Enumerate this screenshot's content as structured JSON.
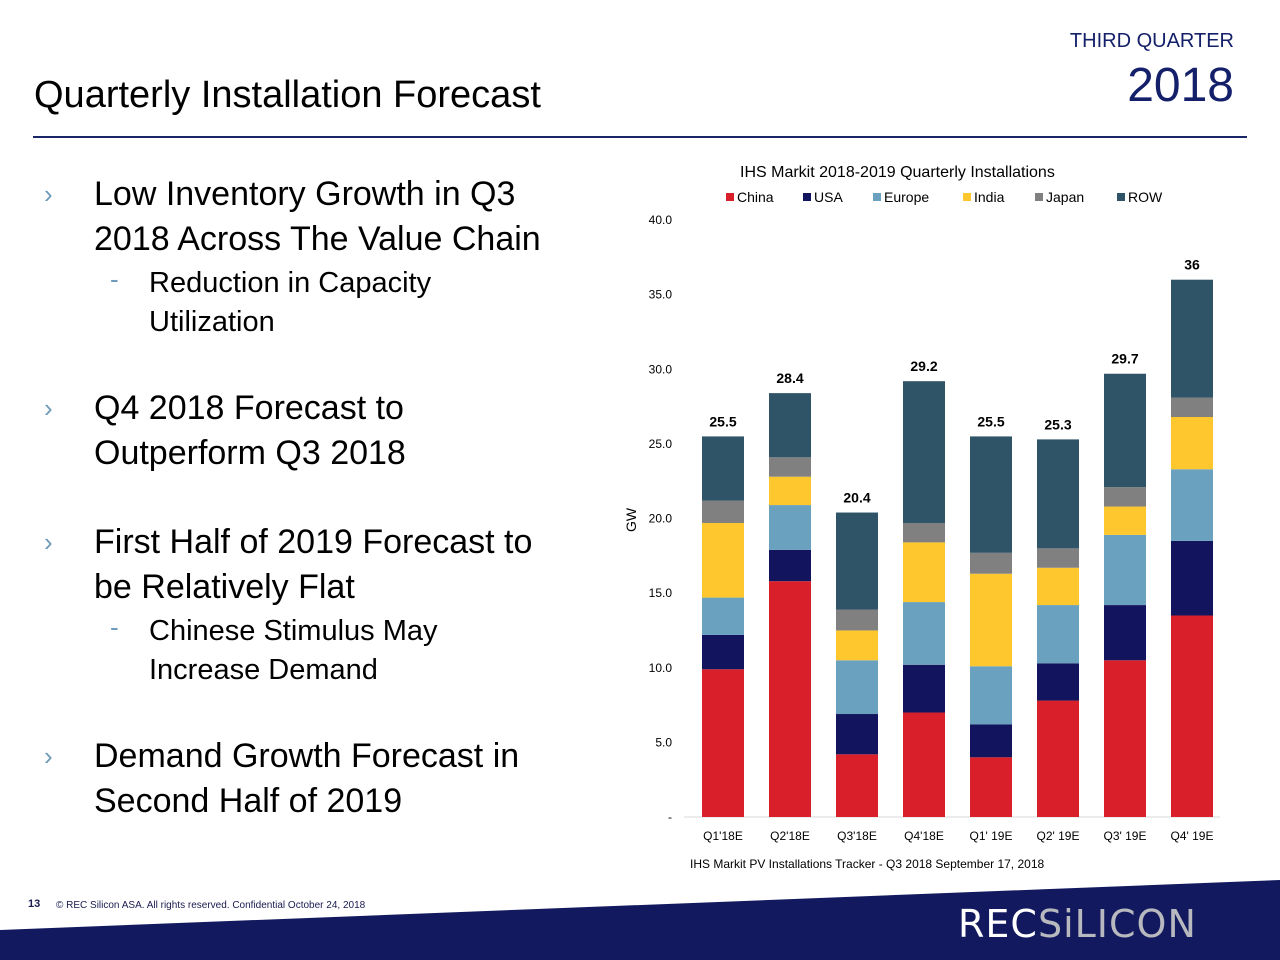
{
  "header": {
    "quarter": "THIRD QUARTER",
    "year": "2018",
    "title": "Quarterly Installation Forecast"
  },
  "bullets": [
    {
      "text_lines": [
        "Low Inventory Growth in Q3",
        "2018 Across The Value Chain"
      ],
      "sub": [
        {
          "lines": [
            "Reduction in Capacity",
            "Utilization"
          ]
        }
      ]
    },
    {
      "text_lines": [
        "Q4 2018 Forecast to",
        "Outperform Q3 2018"
      ],
      "sub": []
    },
    {
      "text_lines": [
        "First Half of 2019 Forecast to",
        "be Relatively Flat"
      ],
      "sub": [
        {
          "lines": [
            "Chinese Stimulus May",
            "Increase Demand"
          ]
        }
      ]
    },
    {
      "text_lines": [
        "Demand Growth Forecast in",
        "Second Half of 2019"
      ],
      "sub": []
    }
  ],
  "markers": {
    "bullet": "›",
    "sub": "-"
  },
  "chart_data": {
    "type": "bar",
    "stacked": true,
    "title": "IHS Markit 2018-2019 Quarterly Installations",
    "source": "IHS Markit PV Installations Tracker - Q3 2018 September 17, 2018",
    "xlabel": "",
    "ylabel": "GW",
    "ylim": [
      0,
      40
    ],
    "yticks": [
      0,
      5,
      10,
      15,
      20,
      25,
      30,
      35,
      40
    ],
    "ytick_labels": [
      "-",
      "5.0",
      "10.0",
      "15.0",
      "20.0",
      "25.0",
      "30.0",
      "35.0",
      "40.0"
    ],
    "categories": [
      "Q1'18E",
      "Q2'18E",
      "Q3'18E",
      "Q4'18E",
      "Q1' 19E",
      "Q2' 19E",
      "Q3' 19E",
      "Q4' 19E"
    ],
    "legend_position": "top",
    "grid": false,
    "series": [
      {
        "name": "China",
        "color": "#d9202a",
        "values": [
          9.9,
          15.8,
          4.2,
          7.0,
          4.0,
          7.8,
          10.5,
          13.5
        ]
      },
      {
        "name": "USA",
        "color": "#12155e",
        "values": [
          2.3,
          2.1,
          2.7,
          3.2,
          2.2,
          2.5,
          3.7,
          5.0
        ]
      },
      {
        "name": "Europe",
        "color": "#69a1bf",
        "values": [
          2.5,
          3.0,
          3.6,
          4.2,
          3.9,
          3.9,
          4.7,
          4.8
        ]
      },
      {
        "name": "India",
        "color": "#fec72e",
        "values": [
          5.0,
          1.9,
          2.0,
          4.0,
          6.2,
          2.5,
          1.9,
          3.5
        ]
      },
      {
        "name": "Japan",
        "color": "#808080",
        "values": [
          1.5,
          1.3,
          1.4,
          1.3,
          1.4,
          1.3,
          1.3,
          1.3
        ]
      },
      {
        "name": "ROW",
        "color": "#2f5468",
        "values": [
          4.3,
          4.3,
          6.5,
          9.5,
          7.8,
          7.3,
          7.6,
          7.9
        ]
      }
    ],
    "totals": [
      25.5,
      28.4,
      20.4,
      29.2,
      25.5,
      25.3,
      29.7,
      36
    ],
    "total_labels": [
      "25.5",
      "28.4",
      "20.4",
      "29.2",
      "25.5",
      "25.3",
      "29.7",
      "36"
    ]
  },
  "footer": {
    "page_number": "13",
    "text": "© REC Silicon ASA. All rights reserved. Confidential  October 24, 2018",
    "logo_rec": "REC",
    "logo_silicon": "SiLICON"
  },
  "colors": {
    "brand_navy": "#13195e",
    "accent_blue": "#6d9bb9"
  }
}
